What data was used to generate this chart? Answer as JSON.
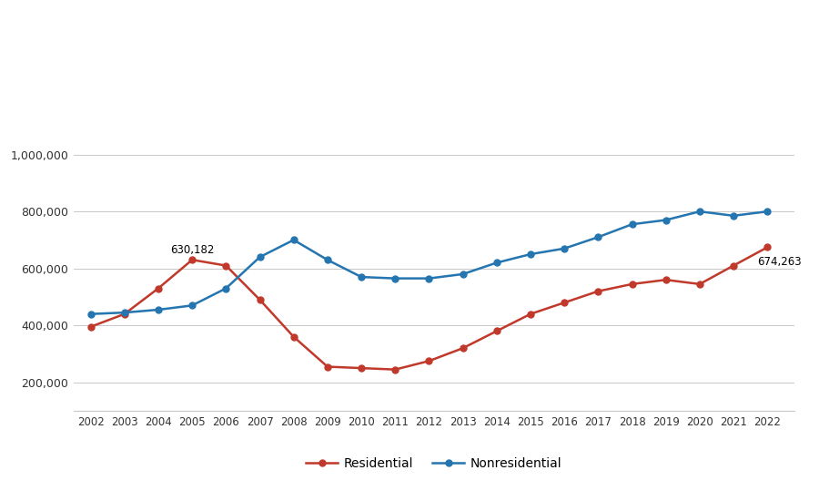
{
  "years": [
    2002,
    2003,
    2004,
    2005,
    2006,
    2007,
    2008,
    2009,
    2010,
    2011,
    2012,
    2013,
    2014,
    2015,
    2016,
    2017,
    2018,
    2019,
    2020,
    2021,
    2022
  ],
  "residential": [
    395000,
    440000,
    530000,
    630182,
    610000,
    490000,
    360000,
    255000,
    250000,
    245000,
    275000,
    320000,
    380000,
    440000,
    480000,
    520000,
    545000,
    560000,
    545000,
    610000,
    674263
  ],
  "nonresidential": [
    440000,
    445000,
    455000,
    470000,
    530000,
    640000,
    700000,
    630000,
    570000,
    565000,
    565000,
    580000,
    620000,
    650000,
    670000,
    710000,
    755000,
    770000,
    800000,
    785000,
    800000
  ],
  "residential_color": "#c0392b",
  "nonresidential_color": "#2475b0",
  "background_color": "#ffffff",
  "grid_color": "#c8c8c8",
  "annotation_2005": "630,182",
  "annotation_2022": "674,263",
  "legend_labels": [
    "Residential",
    "Nonresidential"
  ],
  "ylim": [
    100000,
    1050000
  ],
  "yticks": [
    200000,
    400000,
    600000,
    800000,
    1000000
  ],
  "ytick_labels": [
    "200,000",
    "400,000",
    "600,000",
    "800,000",
    "1,000,000"
  ],
  "marker": "o",
  "markersize": 5,
  "linewidth": 1.8
}
